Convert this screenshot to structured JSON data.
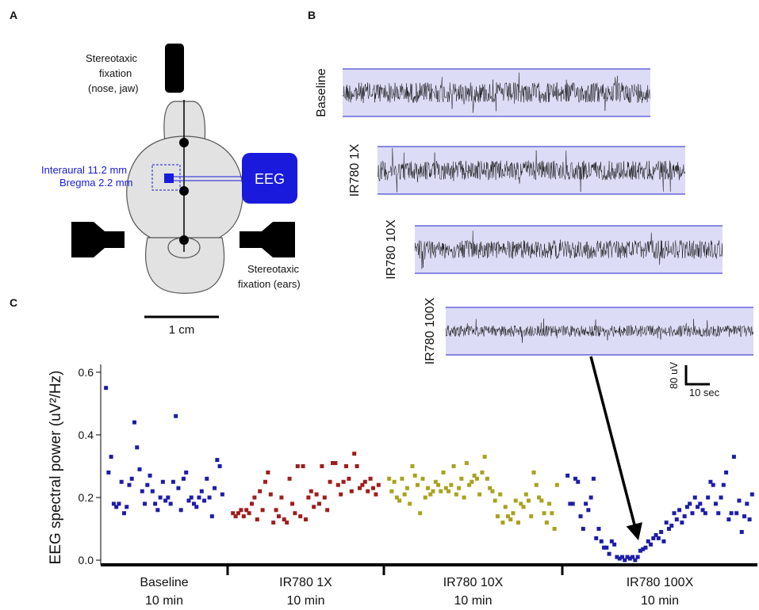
{
  "panel_a": {
    "label": "A",
    "nose_fixation": [
      "Stereotaxic",
      "fixation",
      "(nose, jaw)"
    ],
    "interaural": "Interaural 11.2 mm",
    "bregma": "Bregma 2.2 mm",
    "eeg": "EEG",
    "ear_fixation": [
      "Stereotaxic",
      "fixation (ears)"
    ],
    "scale": "1 cm"
  },
  "panel_b": {
    "label": "B",
    "traces": [
      "Baseline",
      "IR780 1X",
      "IR780 10X",
      "IR780 100X"
    ],
    "scale_amplitude": "80 uV",
    "scale_time": "10 sec"
  },
  "chart_data": {
    "type": "scatter",
    "panel_label": "C",
    "y_label": "EEG spectral power (uV²/Hz)",
    "categories": [
      {
        "name": "Baseline",
        "duration": "10 min"
      },
      {
        "name": "IR780 1X",
        "duration": "10 min"
      },
      {
        "name": "IR780 10X",
        "duration": "10 min"
      },
      {
        "name": "IR780 100X",
        "duration": "10 min"
      }
    ],
    "series": [
      {
        "color": "#1c1ca8",
        "values": [
          0.55,
          0.28,
          0.33,
          0.18,
          0.17,
          0.18,
          0.25,
          0.15,
          0.17,
          0.24,
          0.26,
          0.44,
          0.36,
          0.29,
          0.22,
          0.18,
          0.24,
          0.27,
          0.22,
          0.18,
          0.16,
          0.2,
          0.25,
          0.19,
          0.2,
          0.18,
          0.25,
          0.46,
          0.23,
          0.16,
          0.26,
          0.28,
          0.19,
          0.2,
          0.18,
          0.17,
          0.2,
          0.22,
          0.19,
          0.26,
          0.2,
          0.14,
          0.23,
          0.32,
          0.3,
          0.21
        ]
      },
      {
        "color": "#a01c1c",
        "values": [
          0.15,
          0.14,
          0.15,
          0.16,
          0.14,
          0.16,
          0.15,
          0.18,
          0.2,
          0.13,
          0.22,
          0.16,
          0.25,
          0.28,
          0.21,
          0.12,
          0.16,
          0.14,
          0.2,
          0.13,
          0.12,
          0.26,
          0.18,
          0.15,
          0.3,
          0.14,
          0.3,
          0.13,
          0.2,
          0.22,
          0.17,
          0.21,
          0.18,
          0.3,
          0.2,
          0.16,
          0.25,
          0.31,
          0.31,
          0.24,
          0.21,
          0.25,
          0.3,
          0.26,
          0.22,
          0.34,
          0.3,
          0.23,
          0.24,
          0.25,
          0.22,
          0.26,
          0.23,
          0.21,
          0.24
        ]
      },
      {
        "color": "#a8a21c",
        "values": [
          0.26,
          0.22,
          0.25,
          0.2,
          0.19,
          0.26,
          0.21,
          0.23,
          0.18,
          0.3,
          0.27,
          0.24,
          0.15,
          0.26,
          0.2,
          0.23,
          0.21,
          0.22,
          0.25,
          0.24,
          0.22,
          0.28,
          0.23,
          0.22,
          0.24,
          0.3,
          0.21,
          0.23,
          0.26,
          0.2,
          0.31,
          0.24,
          0.25,
          0.27,
          0.26,
          0.21,
          0.28,
          0.33,
          0.26,
          0.23,
          0.22,
          0.19,
          0.14,
          0.21,
          0.12,
          0.17,
          0.14,
          0.13,
          0.15,
          0.19,
          0.12,
          0.18,
          0.17,
          0.21,
          0.19,
          0.14,
          0.28,
          0.24,
          0.2,
          0.19,
          0.15,
          0.12,
          0.18,
          0.15,
          0.1,
          0.24
        ]
      },
      {
        "color": "#1c1ca8",
        "values": [
          0.27,
          0.18,
          0.18,
          0.26,
          0.25,
          0.14,
          0.1,
          0.18,
          0.16,
          0.2,
          0.26,
          0.07,
          0.1,
          0.06,
          0.04,
          0.04,
          0.02,
          0.06,
          0.05,
          0.01,
          0.005,
          0.01,
          0.0,
          0.01,
          0.005,
          0.01,
          0.0,
          0.01,
          0.03,
          0.035,
          0.04,
          0.06,
          0.05,
          0.07,
          0.08,
          0.07,
          0.09,
          0.06,
          0.12,
          0.1,
          0.11,
          0.15,
          0.13,
          0.16,
          0.12,
          0.14,
          0.17,
          0.18,
          0.15,
          0.2,
          0.17,
          0.18,
          0.16,
          0.15,
          0.2,
          0.25,
          0.24,
          0.18,
          0.15,
          0.2,
          0.24,
          0.28,
          0.13,
          0.15,
          0.33,
          0.15,
          0.19,
          0.09,
          0.14,
          0.18,
          0.13,
          0.21
        ]
      }
    ],
    "ylim": [
      -0.015,
      0.625
    ],
    "yticks": [
      {
        "value": 0,
        "label": "0.0"
      },
      0.2,
      0.4,
      0.6
    ]
  }
}
